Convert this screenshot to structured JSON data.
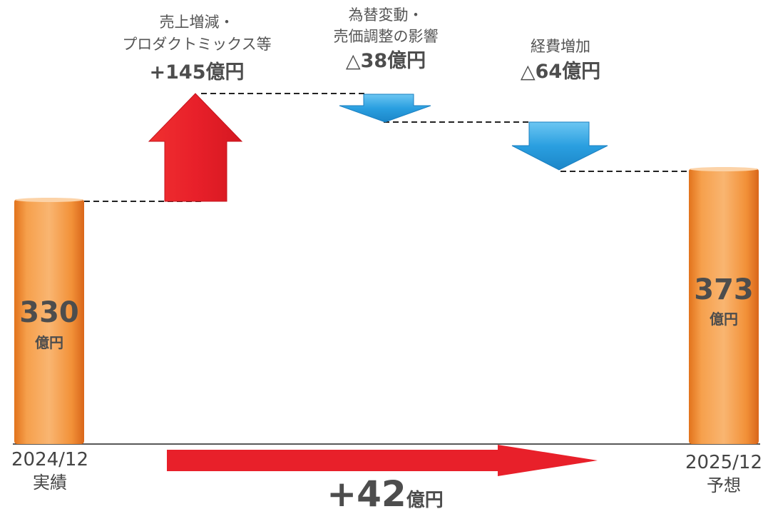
{
  "chart_data": {
    "type": "waterfall",
    "unit": "億円",
    "start": {
      "value_label": "330",
      "unit_label": "億円",
      "cat_line1": "2024/12",
      "cat_line2": "実績",
      "value": 330
    },
    "end": {
      "value_label": "373",
      "unit_label": "億円",
      "cat_line1": "2025/12",
      "cat_line2": "予想",
      "value": 373
    },
    "steps": [
      {
        "label_line1": "売上増減・",
        "label_line2": "プロダクトミックス等",
        "value_label": "+145億円",
        "value": 145,
        "direction": "up",
        "color": "#e8202a"
      },
      {
        "label_line1": "為替変動・",
        "label_line2": "売価調整の影響",
        "value_label": "△38億円",
        "value": -38,
        "direction": "down",
        "color": "#2a9fe0"
      },
      {
        "label_line1": "経費増加",
        "label_line2": "",
        "value_label": "△64億円",
        "value": -64,
        "direction": "down",
        "color": "#2a9fe0"
      }
    ],
    "total_change": {
      "number": "+42",
      "unit": "億円",
      "value": 42
    },
    "colors": {
      "bar": "#f5923a",
      "increase": "#e8202a",
      "decrease": "#2a9fe0",
      "total_arrow": "#e8202a",
      "value_text": "#4d4d4d"
    }
  }
}
